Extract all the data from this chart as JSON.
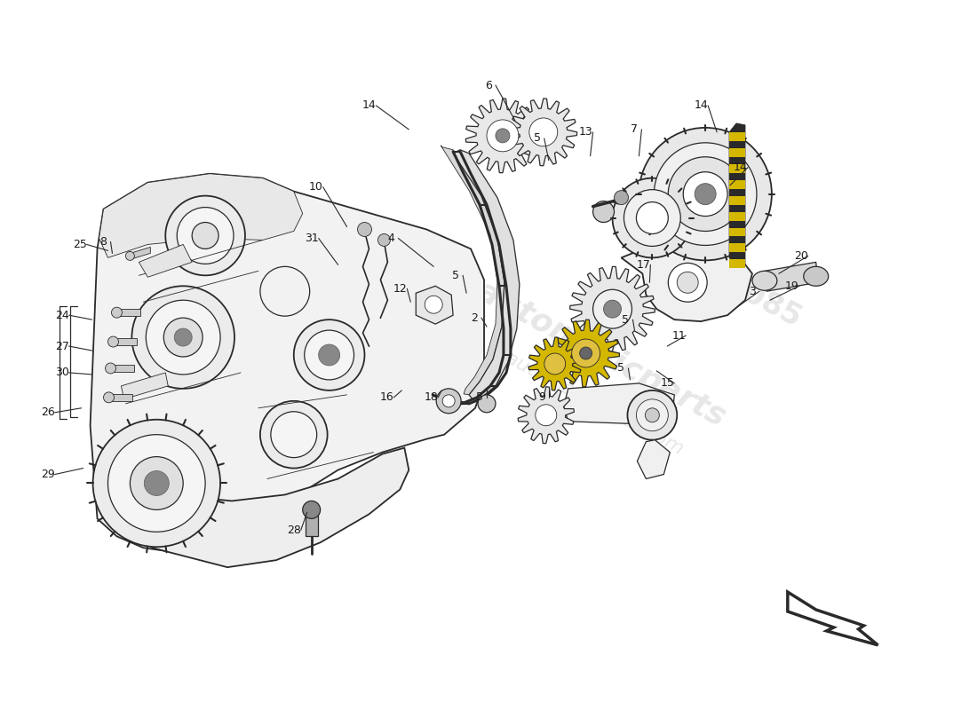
{
  "bg_color": "#ffffff",
  "fig_width": 11.0,
  "fig_height": 8.0,
  "line_color": "#2a2a2a",
  "watermark_color": "#d0d0d0",
  "label_color": "#1a1a1a",
  "font_size_labels": 9,
  "labels": [
    [
      "6",
      550,
      95,
      580,
      135
    ],
    [
      "14",
      415,
      118,
      460,
      145
    ],
    [
      "5",
      605,
      155,
      618,
      180
    ],
    [
      "13",
      660,
      148,
      665,
      175
    ],
    [
      "7",
      715,
      145,
      720,
      175
    ],
    [
      "14",
      790,
      118,
      808,
      148
    ],
    [
      "10",
      355,
      210,
      390,
      255
    ],
    [
      "4",
      440,
      268,
      488,
      300
    ],
    [
      "31",
      350,
      268,
      380,
      298
    ],
    [
      "12",
      450,
      325,
      462,
      340
    ],
    [
      "5",
      513,
      310,
      525,
      330
    ],
    [
      "2",
      534,
      358,
      548,
      368
    ],
    [
      "17",
      725,
      298,
      732,
      318
    ],
    [
      "3",
      848,
      328,
      832,
      345
    ],
    [
      "19",
      893,
      322,
      868,
      338
    ],
    [
      "20",
      903,
      288,
      878,
      308
    ],
    [
      "5",
      705,
      360,
      715,
      372
    ],
    [
      "11",
      765,
      378,
      752,
      390
    ],
    [
      "5",
      700,
      415,
      710,
      428
    ],
    [
      "16",
      435,
      448,
      452,
      440
    ],
    [
      "18",
      485,
      448,
      497,
      440
    ],
    [
      "5",
      540,
      448,
      548,
      438
    ],
    [
      "9",
      610,
      448,
      618,
      438
    ],
    [
      "15",
      752,
      432,
      740,
      418
    ],
    [
      "25",
      88,
      275,
      120,
      282
    ],
    [
      "8",
      115,
      272,
      125,
      285
    ],
    [
      "24",
      68,
      355,
      102,
      360
    ],
    [
      "27",
      68,
      390,
      102,
      395
    ],
    [
      "30",
      68,
      420,
      102,
      422
    ],
    [
      "26",
      52,
      465,
      90,
      460
    ],
    [
      "29",
      52,
      535,
      92,
      528
    ],
    [
      "28",
      330,
      598,
      345,
      578
    ],
    [
      "14",
      835,
      188,
      823,
      208
    ]
  ]
}
